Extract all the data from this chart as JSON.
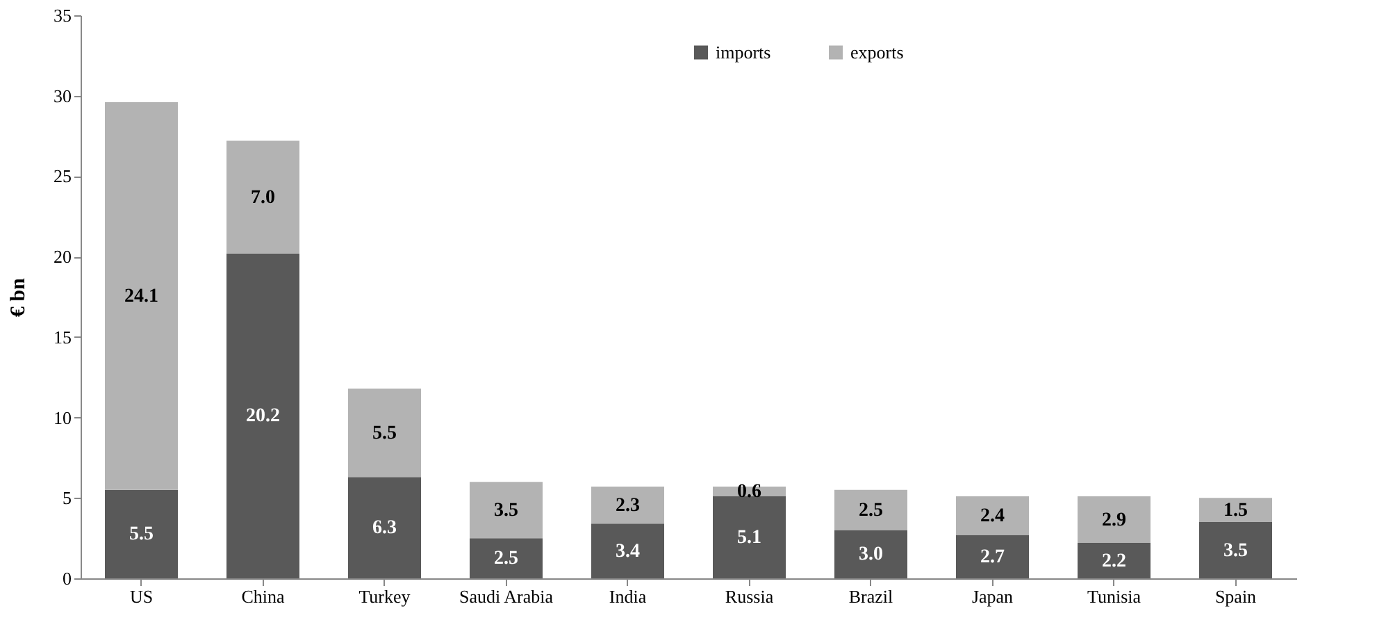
{
  "chart_data": {
    "type": "bar",
    "stacked": true,
    "ylabel": "€ bn",
    "categories": [
      "US",
      "China",
      "Turkey",
      "Saudi Arabia",
      "India",
      "Russia",
      "Brazil",
      "Japan",
      "Tunisia",
      "Spain"
    ],
    "series": [
      {
        "name": "imports",
        "color": "#595959",
        "values": [
          5.5,
          20.2,
          6.3,
          2.5,
          3.4,
          5.1,
          3.0,
          2.7,
          2.2,
          3.5
        ],
        "value_labels": [
          "5.5",
          "20.2",
          "6.3",
          "2.5",
          "3.4",
          "5.1",
          "3.0",
          "2.7",
          "2.2",
          "3.5"
        ]
      },
      {
        "name": "exports",
        "color": "#b3b3b3",
        "values": [
          24.1,
          7.0,
          5.5,
          3.5,
          2.3,
          0.6,
          2.5,
          2.4,
          2.9,
          1.5
        ],
        "value_labels": [
          "24.1",
          "7.0",
          "5.5",
          "3.5",
          "2.3",
          "0.6",
          "2.5",
          "2.4",
          "2.9",
          "1.5"
        ]
      }
    ],
    "ylim": [
      0,
      35
    ],
    "yticks": [
      0,
      5,
      10,
      15,
      20,
      25,
      30,
      35
    ],
    "legend": "top",
    "grid": false
  }
}
